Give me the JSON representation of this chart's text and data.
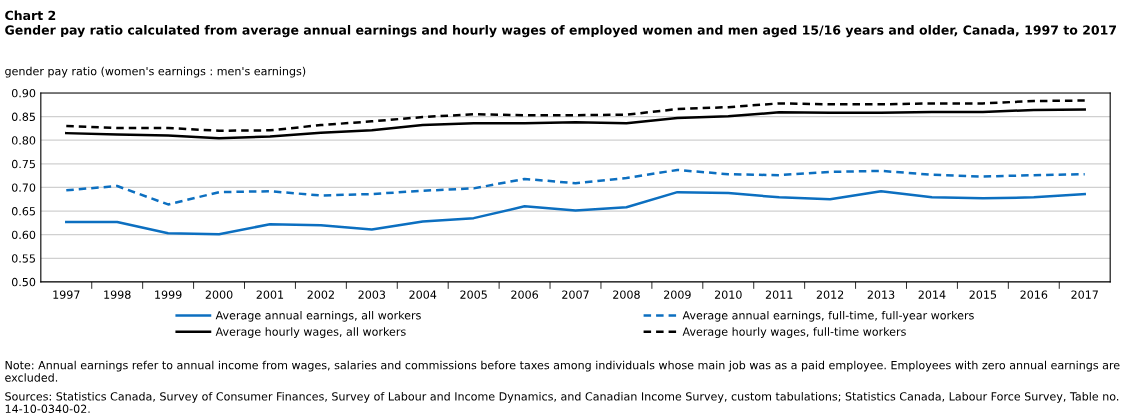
{
  "chart_data": {
    "type": "line",
    "title": "Chart 2",
    "subtitle": "Gender pay ratio calculated from average annual earnings and hourly wages of employed women and men aged 15/16 years and older, Canada, 1997 to 2017",
    "ylabel": "gender pay ratio (women's earnings : men's earnings)",
    "categories": [
      "1997",
      "1998",
      "1999",
      "2000",
      "2001",
      "2002",
      "2003",
      "2004",
      "2005",
      "2006",
      "2007",
      "2008",
      "2009",
      "2010",
      "2011",
      "2012",
      "2013",
      "2014",
      "2015",
      "2016",
      "2017"
    ],
    "series": [
      {
        "name": "Average annual earnings, all workers",
        "color": "#0c6fc0",
        "line_style": "solid",
        "values": [
          0.627,
          0.627,
          0.603,
          0.601,
          0.622,
          0.62,
          0.611,
          0.628,
          0.635,
          0.66,
          0.651,
          0.658,
          0.69,
          0.688,
          0.679,
          0.675,
          0.692,
          0.679,
          0.677,
          0.679,
          0.686
        ]
      },
      {
        "name": "Average annual earnings, full-time, full-year workers",
        "color": "#0c6fc0",
        "line_style": "dashed",
        "values": [
          0.694,
          0.703,
          0.664,
          0.69,
          0.692,
          0.683,
          0.686,
          0.693,
          0.698,
          0.718,
          0.709,
          0.72,
          0.737,
          0.728,
          0.726,
          0.733,
          0.735,
          0.727,
          0.723,
          0.726,
          0.728
        ]
      },
      {
        "name": "Average hourly wages, all workers",
        "color": "#000000",
        "line_style": "solid",
        "values": [
          0.815,
          0.812,
          0.81,
          0.804,
          0.808,
          0.816,
          0.821,
          0.832,
          0.836,
          0.836,
          0.838,
          0.836,
          0.847,
          0.851,
          0.859,
          0.858,
          0.858,
          0.86,
          0.86,
          0.864,
          0.865
        ]
      },
      {
        "name": "Average hourly wages, full-time workers",
        "color": "#000000",
        "line_style": "dashed",
        "values": [
          0.83,
          0.826,
          0.826,
          0.82,
          0.821,
          0.832,
          0.84,
          0.849,
          0.855,
          0.853,
          0.853,
          0.854,
          0.866,
          0.87,
          0.878,
          0.876,
          0.876,
          0.878,
          0.878,
          0.883,
          0.884
        ]
      }
    ],
    "ylim": [
      0.5,
      0.9
    ],
    "yticks": [
      {
        "value": 0.5,
        "label": "0.50"
      },
      {
        "value": 0.55,
        "label": "0.55"
      },
      {
        "value": 0.6,
        "label": "0.60"
      },
      {
        "value": 0.65,
        "label": "0.65"
      },
      {
        "value": 0.7,
        "label": "0.70"
      },
      {
        "value": 0.75,
        "label": "0.75"
      },
      {
        "value": 0.8,
        "label": "0.80"
      },
      {
        "value": 0.85,
        "label": "0.85"
      },
      {
        "value": 0.9,
        "label": "0.90"
      }
    ],
    "grid": "y",
    "legend": "bottom",
    "marker": "none",
    "annotations": [
      "Note: Annual earnings refer to annual income from wages, salaries and commissions before taxes among individuals whose main job was as a paid employee. Employees with zero annual earnings are excluded.",
      "Sources: Statistics Canada, Survey of Consumer Finances, Survey of Labour and Income Dynamics, and Canadian Income Survey, custom tabulations; Statistics Canada, Labour Force Survey, Table no. 14-10-0340-02."
    ]
  }
}
